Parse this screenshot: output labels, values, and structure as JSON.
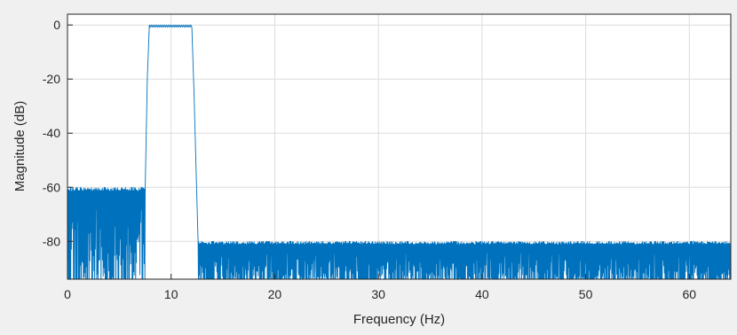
{
  "chart_data": {
    "type": "line",
    "title": "",
    "xlabel": "Frequency (Hz)",
    "ylabel": "Magnitude (dB)",
    "xlim": [
      0,
      64
    ],
    "ylim": [
      -94,
      4
    ],
    "xticks": [
      0,
      10,
      20,
      30,
      40,
      50,
      60
    ],
    "yticks": [
      0,
      -20,
      -40,
      -60,
      -80
    ],
    "xtick_labels": [
      "0",
      "10",
      "20",
      "30",
      "40",
      "50",
      "60"
    ],
    "ytick_labels": [
      "0",
      "-20",
      "-40",
      "-60",
      "-80"
    ],
    "grid": true,
    "series_color": "#0072bd",
    "response_regions": [
      {
        "region": "lower-stopband",
        "x_start": 0,
        "x_end": 7.5,
        "upper_level_db": -60,
        "floor_db": -94
      },
      {
        "region": "transition-rise",
        "x_start": 7.5,
        "x_end": 7.9,
        "from_db": -60,
        "to_db": 0
      },
      {
        "region": "passband",
        "x_start": 7.9,
        "x_end": 12.0,
        "level_db": 0,
        "ripple_db": 0.8
      },
      {
        "region": "transition-fall",
        "x_start": 12.0,
        "x_end": 12.6,
        "from_db": 0,
        "to_db": -80
      },
      {
        "region": "upper-stopband",
        "x_start": 12.6,
        "x_end": 64,
        "upper_level_db": -80,
        "floor_db": -94
      }
    ]
  }
}
